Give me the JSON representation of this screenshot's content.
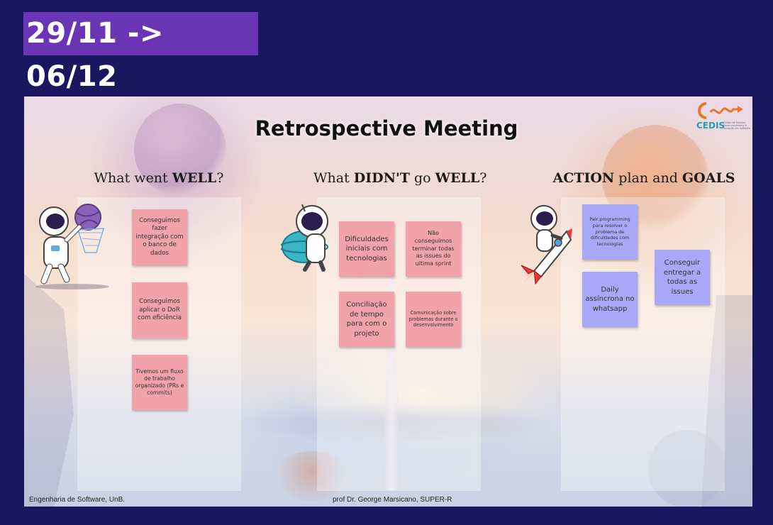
{
  "slide": {
    "date_range": "29/11 -> 06/12"
  },
  "board": {
    "title": "Retrospective Meeting",
    "logo": {
      "name": "CEDIS",
      "subtitle": "Centro de Estudos, Desenvolvimento e Inovação em Software"
    },
    "columns": [
      {
        "header_prefix": "What went ",
        "header_bold": "WELL",
        "header_suffix": "?"
      },
      {
        "header_prefix": "What ",
        "header_bold": "DIDN'T",
        "header_mid": " go ",
        "header_bold2": "WELL",
        "header_suffix": "?"
      },
      {
        "header_bold": "ACTION",
        "header_mid": " plan and ",
        "header_bold2": "GOALS"
      }
    ],
    "notes_well": [
      "Conseguimos fazer integração com o banco de dados",
      "Conseguimos aplicar o DoR com eficiência",
      "Tivemos um fluxo de trabalho organizado (PRs e commits)"
    ],
    "notes_not_well": [
      "Dificuldades iniciais com tecnologias",
      "Não conseguimos terminar todas as issues do ultima sprint",
      "Conciliação de tempo para com o projeto",
      "Comunicação sobre problemas durante o desenvolvimento"
    ],
    "notes_action": [
      "Pair programming para resolver o problema de dificuldades com tecnologias",
      "Daily assíncrona no whatsapp",
      "Conseguir entregar a todas as issues"
    ],
    "footer_left": "Engenharia de Software, UnB.",
    "footer_center": "prof Dr. George Marsicano, SUPER-R"
  },
  "colors": {
    "page_bg": "#1b1660",
    "badge": "#6a35b4",
    "pink_note": "#f1a3a9",
    "blue_note": "#a9a8f8",
    "logo_orange": "#e8782a",
    "logo_teal": "#2a9db3"
  }
}
